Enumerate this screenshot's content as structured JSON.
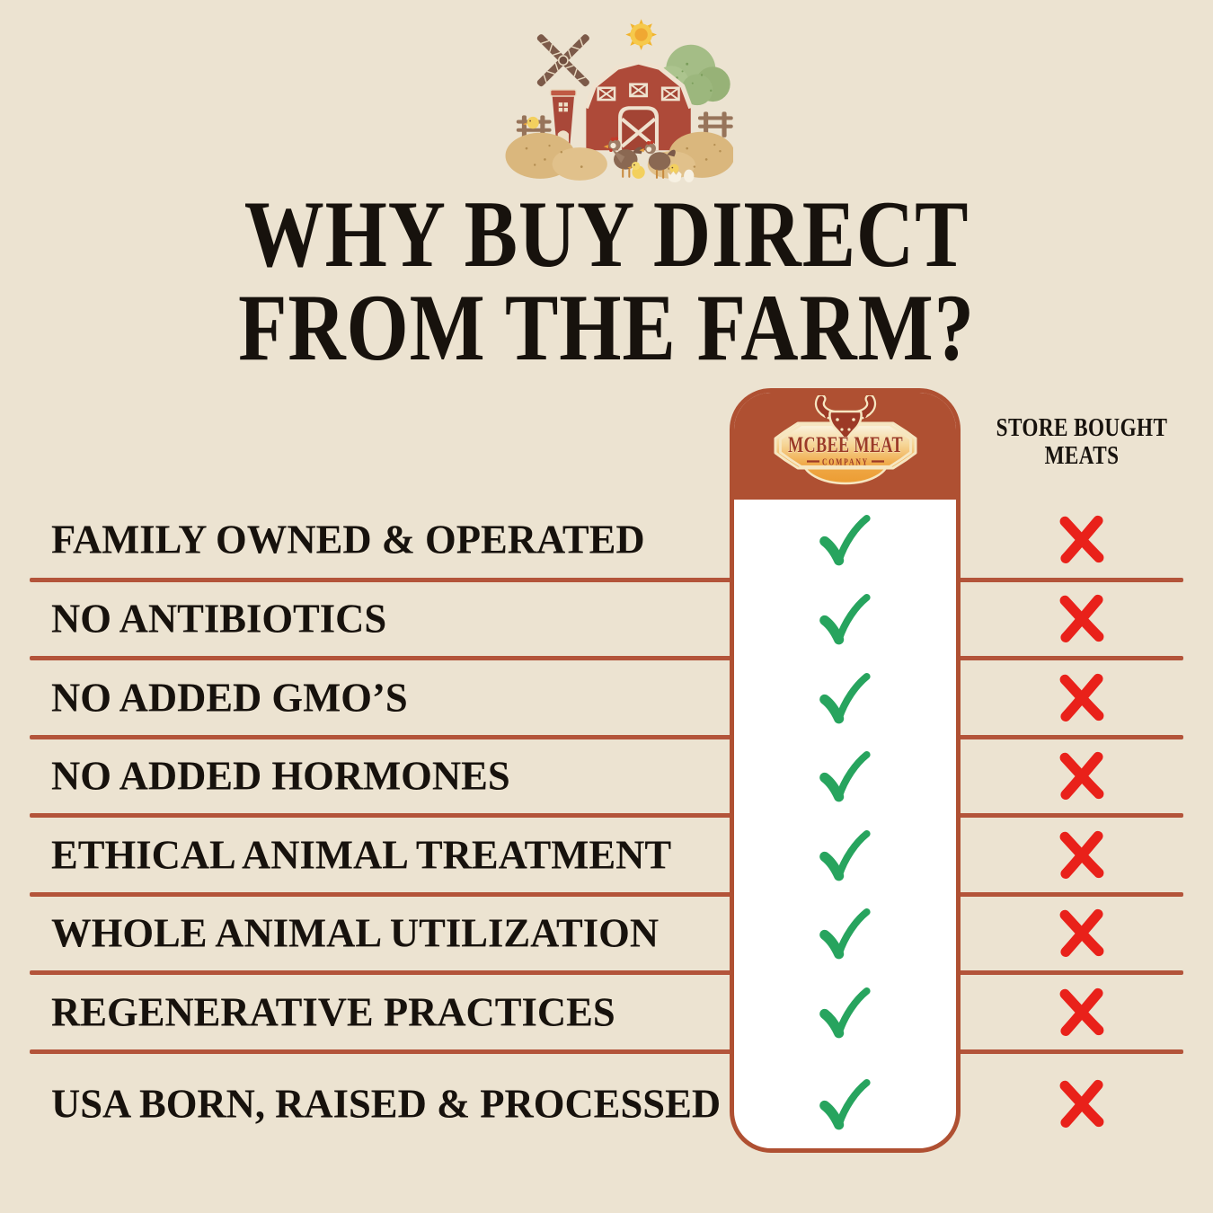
{
  "page": {
    "background_color": "#ece3d1"
  },
  "title": {
    "line1": "WHY BUY DIRECT",
    "line2": "FROM THE FARM?"
  },
  "farm_illustration": {
    "description": "watercolor farm scene",
    "elements": [
      "windmill",
      "red-barn",
      "tree",
      "sun",
      "hay-bales",
      "fence",
      "chickens",
      "chicks",
      "eggs"
    ]
  },
  "comparison": {
    "brand_column": {
      "logo": {
        "line1": "MCBEE MEAT",
        "line2": "COMPANY",
        "icon": "bull-head-icon",
        "text_color": "#9c3a26"
      },
      "header_color": "#af5032"
    },
    "store_column": {
      "line1": "STORE BOUGHT",
      "line2": "MEATS"
    },
    "rows": [
      {
        "label": "FAMILY OWNED & OPERATED",
        "mcbee": true,
        "store": false
      },
      {
        "label": "NO ANTIBIOTICS",
        "mcbee": true,
        "store": false
      },
      {
        "label": "NO ADDED GMO’S",
        "mcbee": true,
        "store": false
      },
      {
        "label": "NO ADDED HORMONES",
        "mcbee": true,
        "store": false
      },
      {
        "label": "ETHICAL ANIMAL TREATMENT",
        "mcbee": true,
        "store": false
      },
      {
        "label": "WHOLE ANIMAL UTILIZATION",
        "mcbee": true,
        "store": false
      },
      {
        "label": "REGENERATIVE PRACTICES",
        "mcbee": true,
        "store": false
      },
      {
        "label": "USA BORN, RAISED & PROCESSED",
        "mcbee": true,
        "store": false
      }
    ],
    "icons": {
      "check": "✓",
      "cross": "✕"
    },
    "colors": {
      "check": "#27a45e",
      "cross": "#e9211a",
      "divider": "#b3543a"
    }
  }
}
